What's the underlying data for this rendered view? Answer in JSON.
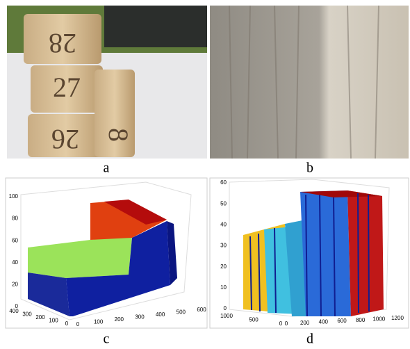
{
  "panels": [
    {
      "label": "a",
      "texts": [
        "28",
        "27",
        "26",
        "8"
      ]
    },
    {
      "label": "b"
    },
    {
      "label": "c",
      "z_ticks": [
        "0",
        "20",
        "40",
        "60",
        "80",
        "100"
      ],
      "y_ticks": [
        "400",
        "300",
        "200",
        "100",
        "0"
      ],
      "x_ticks": [
        "0",
        "100",
        "200",
        "300",
        "400",
        "500",
        "600"
      ]
    },
    {
      "label": "d",
      "z_ticks": [
        "0",
        "10",
        "20",
        "30",
        "40",
        "50",
        "60"
      ],
      "y_ticks": [
        "1000",
        "500",
        "0"
      ],
      "x_ticks": [
        "0",
        "200",
        "400",
        "600",
        "800",
        "1000",
        "1200"
      ]
    }
  ]
}
